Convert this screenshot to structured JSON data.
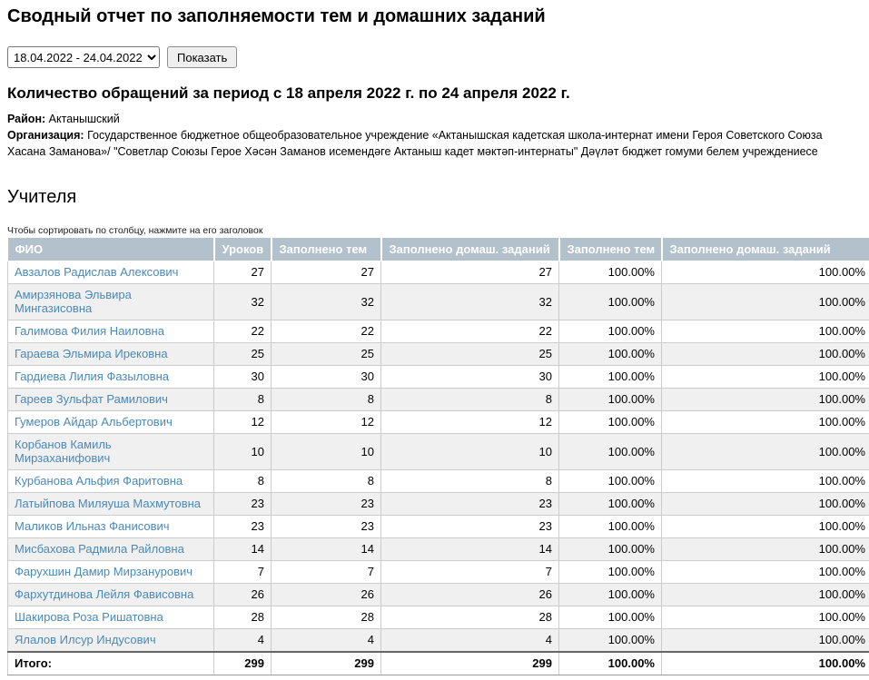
{
  "page": {
    "title": "Сводный отчет по заполняемости тем и домашних заданий"
  },
  "filter": {
    "period_selected": "18.04.2022 - 24.04.2022",
    "show_button": "Показать"
  },
  "summary": {
    "heading": "Количество обращений за период с 18 апреля 2022 г. по 24 апреля 2022 г.",
    "district_label": "Район:",
    "district": "Актанышский",
    "organization_label": "Организация:",
    "organization": "Государственное бюджетное общеобразовательное учреждение «Актанышская кадетская школа-интернат имени Героя Советского Союза Хасана Заманова»/ \"Советлар Союзы Герое Хәсән Заманов исемендәге Актаныш кадет мәктәп-интернаты\" Дәүләт бюджет гомуми белем учреждениесе"
  },
  "teachers": {
    "heading": "Учителя",
    "sort_hint": "Чтобы сортировать по столбцу, нажмите на его заголовок",
    "columns": [
      "ФИО",
      "Уроков",
      "Заполнено тем",
      "Заполнено домаш. заданий",
      "Заполнено тем",
      "Заполнено домаш. заданий"
    ],
    "rows": [
      {
        "name": "Авзалов Радислав Алексович",
        "lessons": "27",
        "topics": "27",
        "homework": "27",
        "topics_pct": "100.00%",
        "homework_pct": "100.00%"
      },
      {
        "name": "Амирзянова Эльвира Мингазисовна",
        "lessons": "32",
        "topics": "32",
        "homework": "32",
        "topics_pct": "100.00%",
        "homework_pct": "100.00%"
      },
      {
        "name": "Галимова Филия Наиловна",
        "lessons": "22",
        "topics": "22",
        "homework": "22",
        "topics_pct": "100.00%",
        "homework_pct": "100.00%"
      },
      {
        "name": "Гараева Эльмира Ирековна",
        "lessons": "25",
        "topics": "25",
        "homework": "25",
        "topics_pct": "100.00%",
        "homework_pct": "100.00%"
      },
      {
        "name": "Гардиева Лилия Фазыловна",
        "lessons": "30",
        "topics": "30",
        "homework": "30",
        "topics_pct": "100.00%",
        "homework_pct": "100.00%"
      },
      {
        "name": "Гареев Зульфат Рамилович",
        "lessons": "8",
        "topics": "8",
        "homework": "8",
        "topics_pct": "100.00%",
        "homework_pct": "100.00%"
      },
      {
        "name": "Гумеров Айдар Альбертович",
        "lessons": "12",
        "topics": "12",
        "homework": "12",
        "topics_pct": "100.00%",
        "homework_pct": "100.00%"
      },
      {
        "name": "Корбанов Камиль Мирзаханифович",
        "lessons": "10",
        "topics": "10",
        "homework": "10",
        "topics_pct": "100.00%",
        "homework_pct": "100.00%"
      },
      {
        "name": "Курбанова Альфия Фаритовна",
        "lessons": "8",
        "topics": "8",
        "homework": "8",
        "topics_pct": "100.00%",
        "homework_pct": "100.00%"
      },
      {
        "name": "Латыйпова Миляуша Махмутовна",
        "lessons": "23",
        "topics": "23",
        "homework": "23",
        "topics_pct": "100.00%",
        "homework_pct": "100.00%"
      },
      {
        "name": "Маликов Ильназ Фанисович",
        "lessons": "23",
        "topics": "23",
        "homework": "23",
        "topics_pct": "100.00%",
        "homework_pct": "100.00%"
      },
      {
        "name": "Мисбахова Радмила Райловна",
        "lessons": "14",
        "topics": "14",
        "homework": "14",
        "topics_pct": "100.00%",
        "homework_pct": "100.00%"
      },
      {
        "name": "Фарухшин Дамир Мирзанурович",
        "lessons": "7",
        "topics": "7",
        "homework": "7",
        "topics_pct": "100.00%",
        "homework_pct": "100.00%"
      },
      {
        "name": "Фархутдинова Лейля Фависовна",
        "lessons": "26",
        "topics": "26",
        "homework": "26",
        "topics_pct": "100.00%",
        "homework_pct": "100.00%"
      },
      {
        "name": "Шакирова Роза Ришатовна",
        "lessons": "28",
        "topics": "28",
        "homework": "28",
        "topics_pct": "100.00%",
        "homework_pct": "100.00%"
      },
      {
        "name": "Ялалов Илсур Индусович",
        "lessons": "4",
        "topics": "4",
        "homework": "4",
        "topics_pct": "100.00%",
        "homework_pct": "100.00%"
      }
    ],
    "total": {
      "label": "Итого:",
      "lessons": "299",
      "topics": "299",
      "homework": "299",
      "topics_pct": "100.00%",
      "homework_pct": "100.00%"
    }
  },
  "colors": {
    "table_header_bg": "#b3c1cc",
    "table_header_text": "#ffffff",
    "link": "#4a89b8",
    "alt_row_bg": "#f0f0f0",
    "cell_border": "#cccccc"
  }
}
